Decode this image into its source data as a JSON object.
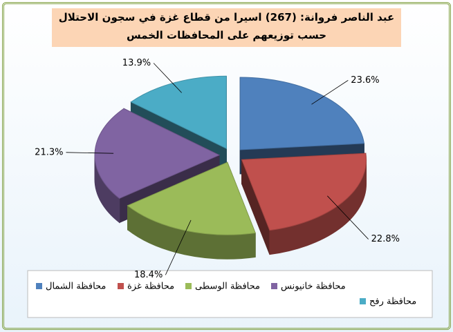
{
  "chart_data": {
    "type": "pie",
    "title": "عبد الناصر فروانة: (267) اسيرا من قطاع غزة في سجون الاحتلال",
    "subtitle": "حسب توزيعهم على المحافظات الخمس",
    "categories": [
      "محافظة الشمال",
      "محافظة غزة",
      "محافظة الوسطى",
      "محافظة خانيونس",
      "محافظة رفح"
    ],
    "values": [
      23.6,
      22.8,
      18.4,
      21.3,
      13.9
    ],
    "value_labels": [
      "23.6%",
      "22.8%",
      "18.4%",
      "21.3%",
      "13.9%"
    ],
    "colors": [
      "#4f81bd",
      "#c0504d",
      "#9bbb59",
      "#8064a2",
      "#4bacc6"
    ],
    "legend": "bottom"
  }
}
